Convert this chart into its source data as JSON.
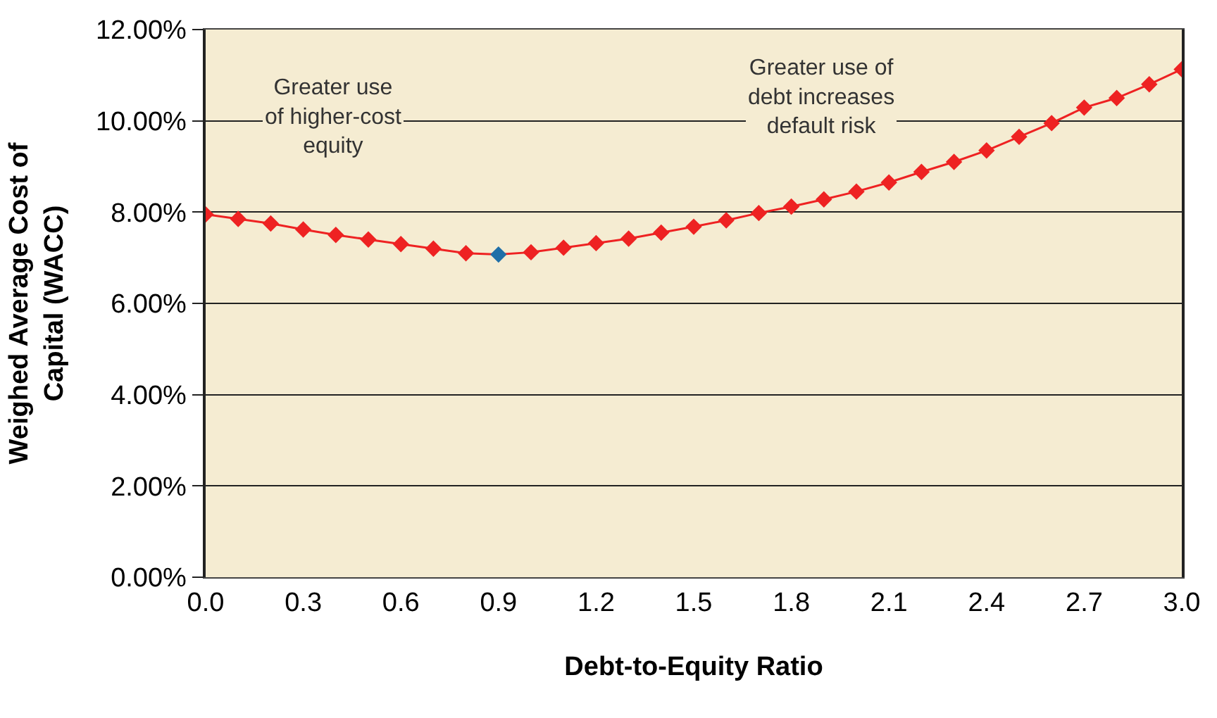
{
  "chart_data": {
    "type": "line",
    "xlabel": "Debt-to-Equity Ratio",
    "ylabel": "Weighed Average Cost of Capital (WACC)",
    "x": [
      0.0,
      0.1,
      0.2,
      0.3,
      0.4,
      0.5,
      0.6,
      0.7,
      0.8,
      0.9,
      1.0,
      1.1,
      1.2,
      1.3,
      1.4,
      1.5,
      1.6,
      1.7,
      1.8,
      1.9,
      2.0,
      2.1,
      2.2,
      2.3,
      2.4,
      2.5,
      2.6,
      2.7,
      2.8,
      2.9,
      3.0
    ],
    "series": [
      {
        "color": "#ee2222",
        "colors": [
          "#ee2222",
          "#ee2222",
          "#ee2222",
          "#ee2222",
          "#ee2222",
          "#ee2222",
          "#ee2222",
          "#ee2222",
          "#ee2222",
          "#1f6fa8",
          "#ee2222",
          "#ee2222",
          "#ee2222",
          "#ee2222",
          "#ee2222",
          "#ee2222",
          "#ee2222",
          "#ee2222",
          "#ee2222",
          "#ee2222",
          "#ee2222",
          "#ee2222",
          "#ee2222",
          "#ee2222",
          "#ee2222",
          "#ee2222",
          "#ee2222",
          "#ee2222",
          "#ee2222",
          "#ee2222",
          "#ee2222"
        ],
        "values": [
          7.95,
          7.85,
          7.75,
          7.62,
          7.5,
          7.4,
          7.3,
          7.2,
          7.1,
          7.07,
          7.12,
          7.22,
          7.32,
          7.42,
          7.55,
          7.68,
          7.82,
          7.98,
          8.12,
          8.28,
          8.45,
          8.65,
          8.88,
          9.1,
          9.35,
          9.65,
          9.95,
          10.29,
          10.5,
          10.8,
          11.13
        ]
      }
    ],
    "xlim": [
      0.0,
      3.0
    ],
    "xticks": [
      {
        "value": 0,
        "label": "0.0"
      },
      {
        "value": 0.3,
        "label": "0.3"
      },
      {
        "value": 0.6,
        "label": "0.6"
      },
      {
        "value": 0.9,
        "label": "0.9"
      },
      {
        "value": 1.2,
        "label": "1.2"
      },
      {
        "value": 1.5,
        "label": "1.5"
      },
      {
        "value": 1.8,
        "label": "1.8"
      },
      {
        "value": 2.1,
        "label": "2.1"
      },
      {
        "value": 2.4,
        "label": "2.4"
      },
      {
        "value": 2.7,
        "label": "2.7"
      },
      {
        "value": 3.0,
        "label": "3.0"
      }
    ],
    "ylim": [
      0,
      12
    ],
    "yticks": [
      {
        "value": 0,
        "label": "0.00%"
      },
      {
        "value": 2,
        "label": "2.00%"
      },
      {
        "value": 4,
        "label": "4.00%"
      },
      {
        "value": 6,
        "label": "6.00%"
      },
      {
        "value": 8,
        "label": "8.00%"
      },
      {
        "value": 10,
        "label": "10.00%"
      },
      {
        "value": 12,
        "label": "12.00%"
      }
    ],
    "grid": "y",
    "marker": "diamond",
    "line_style": "solid",
    "annotations": [
      "Greater use\nof higher-cost\nequity",
      "Greater use of\ndebt increases\ndefault risk"
    ]
  }
}
